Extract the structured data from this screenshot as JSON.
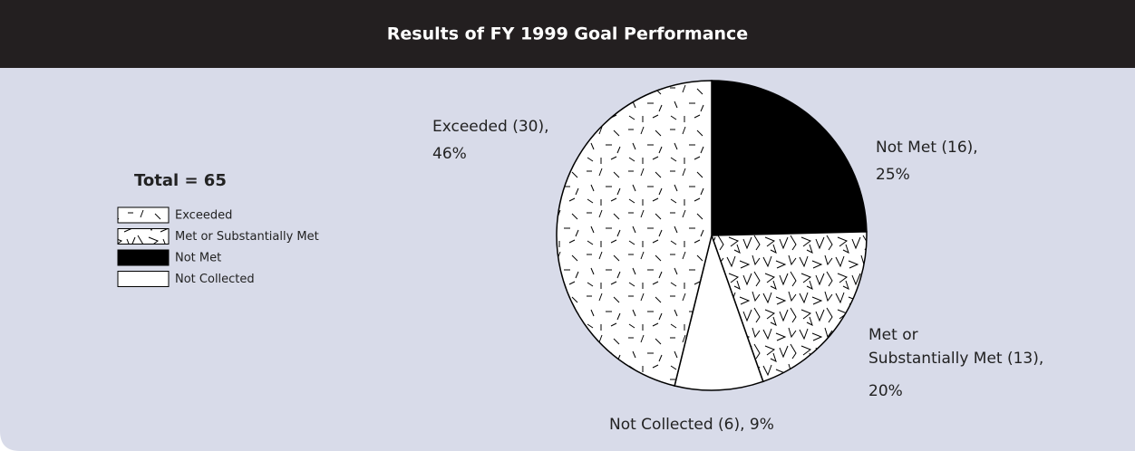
{
  "chart_data": {
    "type": "pie",
    "title": "Results of FY 1999 Goal Performance",
    "total_label": "Total = 65",
    "categories": [
      "Exceeded",
      "Met or Substantially Met",
      "Not Met",
      "Not Collected"
    ],
    "values": [
      30,
      13,
      16,
      6
    ],
    "value_labels": [
      [
        "Exceeded (30),",
        "46%"
      ],
      [
        "Met or",
        "Substantially Met (13),",
        "20%"
      ],
      [
        "Not Met (16),",
        "25%"
      ],
      [
        "Not Collected (6), 9%"
      ]
    ],
    "legend": "left"
  }
}
